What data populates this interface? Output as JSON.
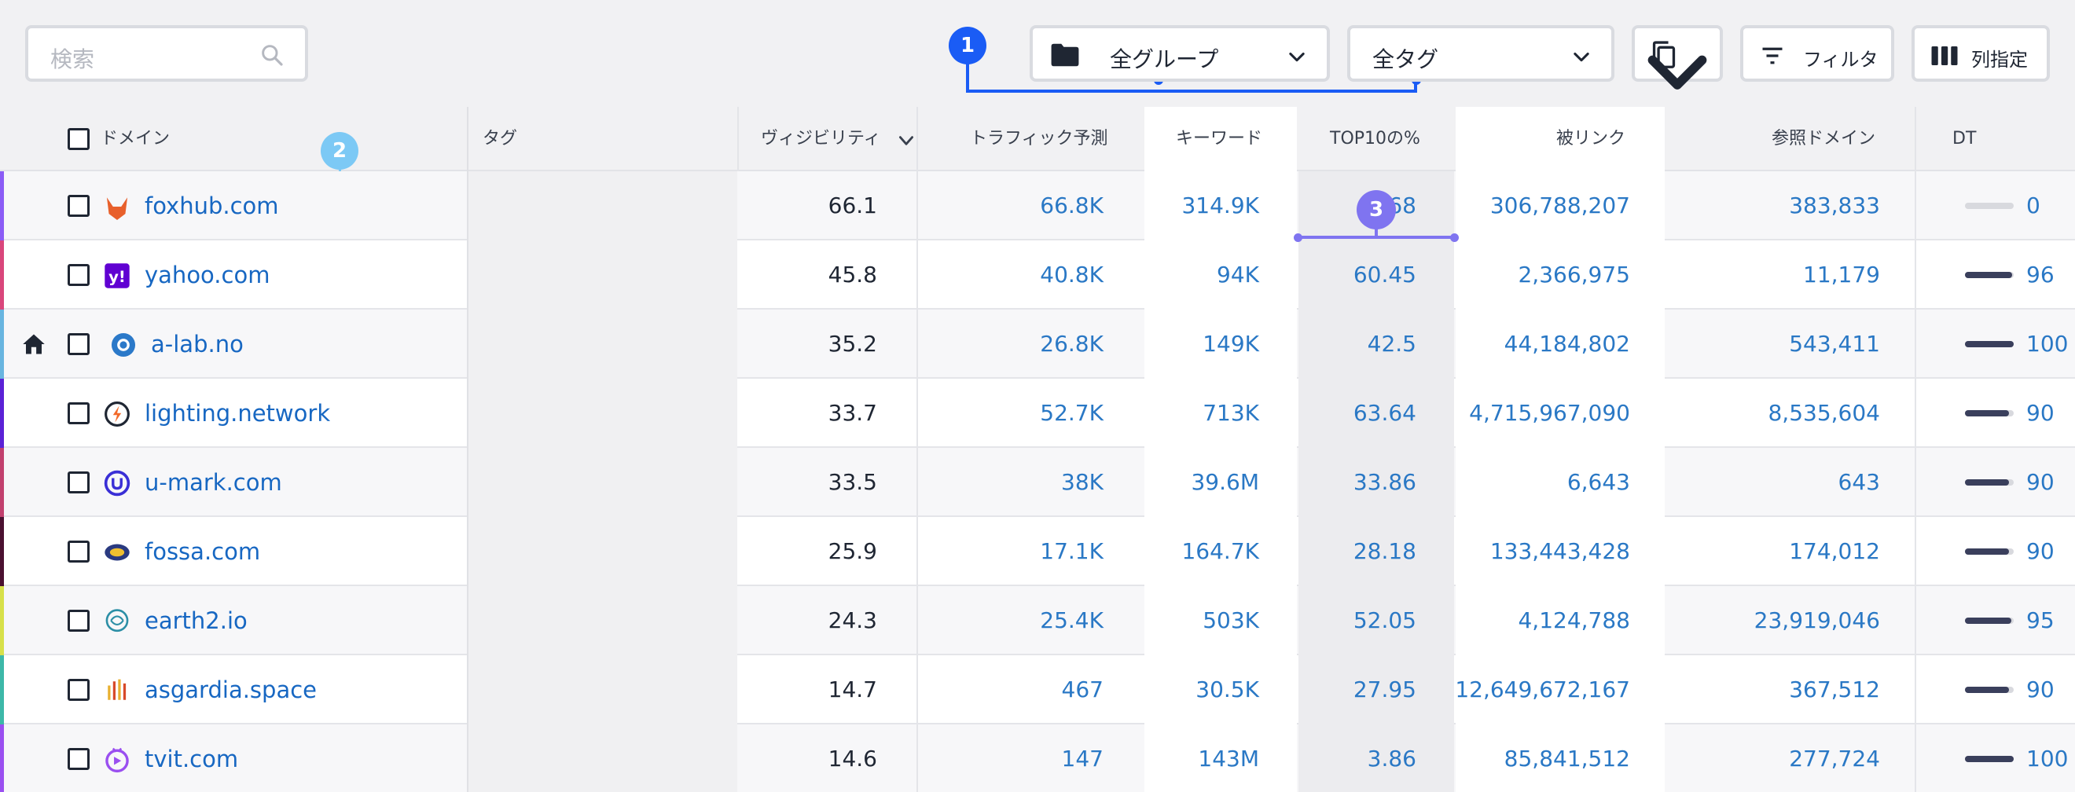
{
  "search": {
    "placeholder": "検索"
  },
  "toolbar": {
    "group_label": "全グループ",
    "tag_label": "全タグ",
    "filter_label": "フィルタ",
    "columns_label": "列指定"
  },
  "callouts": {
    "one": "1",
    "two": "2",
    "three": "3"
  },
  "table": {
    "headers": {
      "domain": "ドメイン",
      "tag": "タグ",
      "visibility": "ヴィジビリティ",
      "traffic": "トラフィック予測",
      "keywords": "キーワード",
      "top10": "TOP10の%",
      "backlinks": "被リンク",
      "ref_domains": "参照ドメイン",
      "dt": "DT"
    },
    "rows": [
      {
        "domain": "foxhub.com",
        "visibility": "66.1",
        "traffic": "66.8K",
        "keywords": "314.9K",
        "top10": "68",
        "backlinks": "306,788,207",
        "ref_domains": "383,833",
        "dt": "0",
        "accent": "#8b5cf6",
        "home": false
      },
      {
        "domain": "yahoo.com",
        "visibility": "45.8",
        "traffic": "40.8K",
        "keywords": "94K",
        "top10": "60.45",
        "backlinks": "2,366,975",
        "ref_domains": "11,179",
        "dt": "96",
        "accent": "#d9467b",
        "home": false
      },
      {
        "domain": "a-lab.no",
        "visibility": "35.2",
        "traffic": "26.8K",
        "keywords": "149K",
        "top10": "42.5",
        "backlinks": "44,184,802",
        "ref_domains": "543,411",
        "dt": "100",
        "accent": "#68b5e0",
        "home": true
      },
      {
        "domain": "lighting.network",
        "visibility": "33.7",
        "traffic": "52.7K",
        "keywords": "713K",
        "top10": "63.64",
        "backlinks": "4,715,967,090",
        "ref_domains": "8,535,604",
        "dt": "90",
        "accent": "#5b21d6",
        "home": false
      },
      {
        "domain": "u-mark.com",
        "visibility": "33.5",
        "traffic": "38K",
        "keywords": "39.6M",
        "top10": "33.86",
        "backlinks": "6,643",
        "ref_domains": "643",
        "dt": "90",
        "accent": "#c2406e",
        "home": false
      },
      {
        "domain": "fossa.com",
        "visibility": "25.9",
        "traffic": "17.1K",
        "keywords": "164.7K",
        "top10": "28.18",
        "backlinks": "133,443,428",
        "ref_domains": "174,012",
        "dt": "90",
        "accent": "#4a1030",
        "home": false
      },
      {
        "domain": "earth2.io",
        "visibility": "24.3",
        "traffic": "25.4K",
        "keywords": "503K",
        "top10": "52.05",
        "backlinks": "4,124,788",
        "ref_domains": "23,919,046",
        "dt": "95",
        "accent": "#d7e04a",
        "home": false
      },
      {
        "domain": "asgardia.space",
        "visibility": "14.7",
        "traffic": "467",
        "keywords": "30.5K",
        "top10": "27.95",
        "backlinks": "12,649,672,167",
        "ref_domains": "367,512",
        "dt": "90",
        "accent": "#3db8a8",
        "home": false
      },
      {
        "domain": "tvit.com",
        "visibility": "14.6",
        "traffic": "147",
        "keywords": "143M",
        "top10": "3.86",
        "backlinks": "85,841,512",
        "ref_domains": "277,724",
        "dt": "100",
        "accent": "#9a4ff0",
        "home": false
      }
    ]
  }
}
